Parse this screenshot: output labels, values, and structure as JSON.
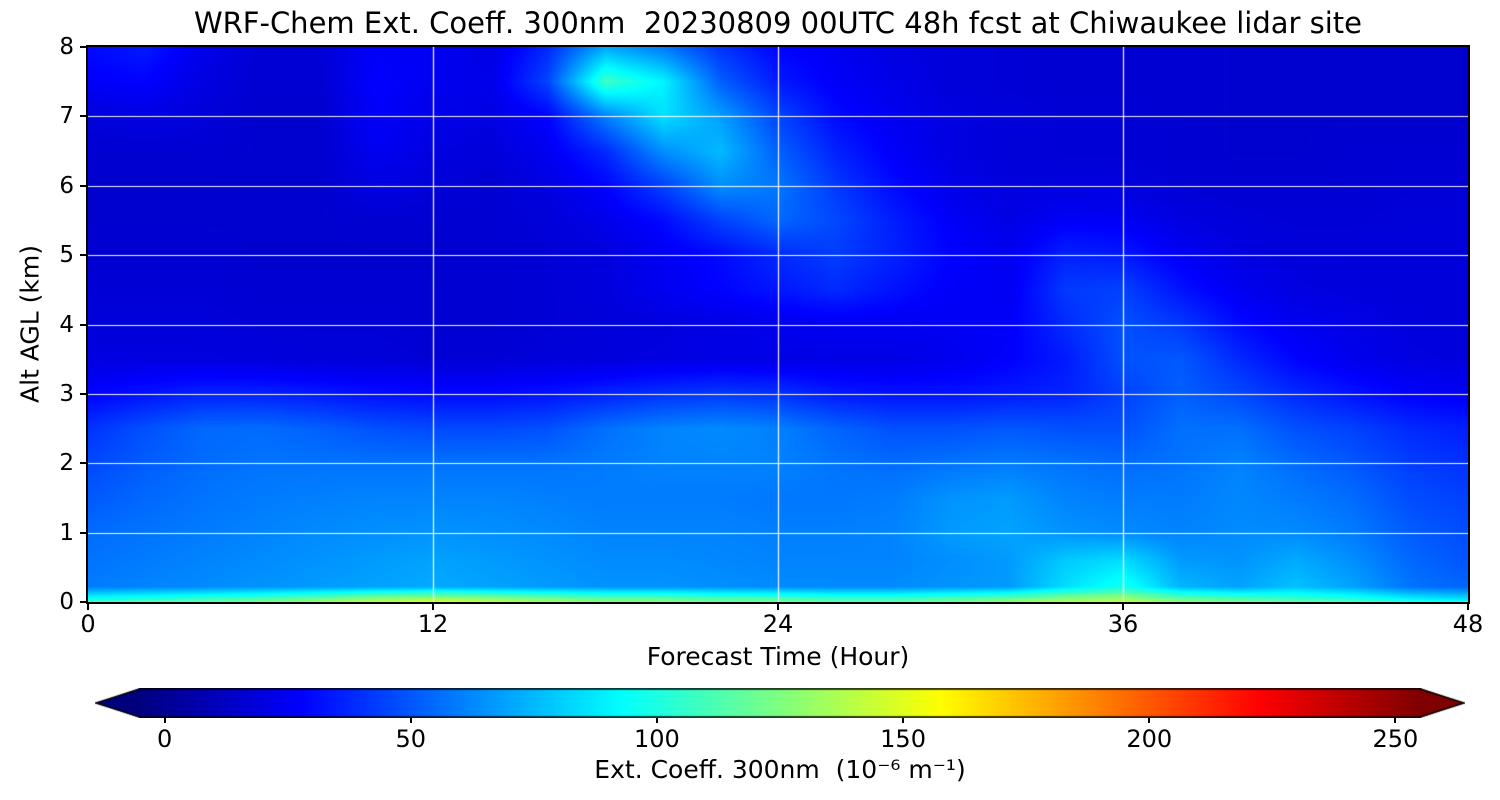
{
  "figure": {
    "title": "WRF-Chem Ext. Coeff. 300nm  20230809 00UTC 48h fcst at Chiwaukee lidar site",
    "background": "#ffffff"
  },
  "chart_data": {
    "type": "heatmap",
    "title": "WRF-Chem Ext. Coeff. 300nm  20230809 00UTC 48h fcst at Chiwaukee lidar site",
    "xlabel": "Forecast Time (Hour)",
    "ylabel": "Alt AGL (km)",
    "xlim": [
      0,
      48
    ],
    "ylim": [
      0,
      8
    ],
    "x_ticks": [
      0,
      12,
      24,
      36,
      48
    ],
    "y_ticks": [
      0,
      1,
      2,
      3,
      4,
      5,
      6,
      7,
      8
    ],
    "grid": true,
    "grid_color": "#ffffff",
    "colormap": "jet",
    "values_units": "10⁻⁶ m⁻¹",
    "x": [
      0,
      2,
      4,
      6,
      8,
      10,
      12,
      14,
      16,
      18,
      20,
      22,
      24,
      26,
      28,
      30,
      32,
      34,
      36,
      38,
      40,
      42,
      44,
      46,
      48
    ],
    "y": [
      0,
      0.05,
      0.22,
      0.6,
      1,
      1.5,
      2,
      2.5,
      3,
      3.5,
      4,
      4.5,
      5,
      5.5,
      6,
      6.5,
      7,
      7.5,
      8
    ],
    "values": [
      [
        110,
        115,
        120,
        125,
        132,
        140,
        145,
        140,
        134,
        128,
        128,
        123,
        123,
        118,
        118,
        123,
        129,
        137,
        141,
        128,
        123,
        118,
        112,
        100,
        95
      ],
      [
        95,
        100,
        105,
        110,
        118,
        128,
        133,
        128,
        122,
        116,
        116,
        111,
        111,
        106,
        106,
        111,
        117,
        126,
        131,
        116,
        111,
        106,
        100,
        89,
        84
      ],
      [
        59,
        61,
        63,
        65,
        67,
        69,
        71,
        69,
        67,
        65,
        65,
        64,
        63,
        63,
        63,
        65,
        67,
        84,
        98,
        74,
        69,
        77,
        69,
        57,
        53
      ],
      [
        57,
        59,
        61,
        63,
        65,
        67,
        69,
        67,
        65,
        63,
        63,
        62,
        61,
        61,
        61,
        64,
        67,
        79,
        84,
        67,
        65,
        71,
        64,
        54,
        49
      ],
      [
        55,
        57,
        59,
        61,
        63,
        64,
        65,
        64,
        63,
        61,
        61,
        61,
        60,
        60,
        61,
        67,
        69,
        65,
        63,
        61,
        63,
        63,
        59,
        51,
        47
      ],
      [
        50,
        54,
        57,
        59,
        60,
        61,
        61,
        61,
        60,
        59,
        59,
        59,
        58,
        58,
        59,
        65,
        67,
        61,
        59,
        59,
        62,
        59,
        55,
        47,
        44
      ],
      [
        46,
        51,
        55,
        57,
        57,
        57,
        57,
        57,
        57,
        59,
        61,
        61,
        61,
        57,
        55,
        57,
        59,
        57,
        55,
        57,
        61,
        55,
        50,
        43,
        40
      ],
      [
        40,
        48,
        54,
        55,
        52,
        48,
        46,
        46,
        48,
        56,
        61,
        63,
        60,
        53,
        48,
        48,
        50,
        48,
        48,
        56,
        56,
        48,
        44,
        38,
        35
      ],
      [
        28,
        32,
        36,
        36,
        34,
        31,
        30,
        30,
        32,
        36,
        40,
        42,
        40,
        34,
        32,
        32,
        34,
        36,
        44,
        52,
        46,
        38,
        32,
        27,
        25
      ],
      [
        20,
        20,
        20,
        19,
        18,
        18,
        17,
        17,
        18,
        19,
        20,
        21,
        21,
        21,
        21,
        23,
        27,
        34,
        48,
        50,
        38,
        28,
        23,
        20,
        19
      ],
      [
        18,
        18,
        18,
        17,
        17,
        17,
        16,
        16,
        17,
        18,
        19,
        21,
        23,
        24,
        24,
        25,
        26,
        38,
        48,
        42,
        30,
        24,
        21,
        19,
        18
      ],
      [
        17,
        17,
        17,
        16,
        16,
        16,
        16,
        16,
        17,
        19,
        24,
        28,
        33,
        38,
        32,
        26,
        24,
        42,
        44,
        32,
        24,
        20,
        19,
        18,
        18
      ],
      [
        16,
        16,
        16,
        15,
        15,
        15,
        15,
        16,
        17,
        19,
        24,
        30,
        38,
        43,
        36,
        28,
        24,
        36,
        34,
        25,
        20,
        18,
        18,
        18,
        18
      ],
      [
        15,
        15,
        15,
        15,
        15,
        16,
        16,
        16,
        18,
        22,
        30,
        44,
        54,
        46,
        35,
        26,
        21,
        26,
        25,
        20,
        18,
        17,
        17,
        18,
        18
      ],
      [
        15,
        15,
        15,
        15,
        15,
        20,
        18,
        16,
        20,
        28,
        44,
        64,
        58,
        42,
        30,
        22,
        19,
        19,
        19,
        17,
        16,
        16,
        16,
        17,
        17
      ],
      [
        16,
        16,
        16,
        15,
        15,
        24,
        20,
        18,
        24,
        38,
        64,
        75,
        52,
        36,
        26,
        20,
        18,
        17,
        17,
        16,
        15,
        15,
        16,
        16,
        16
      ],
      [
        18,
        20,
        18,
        15,
        15,
        26,
        22,
        20,
        28,
        60,
        85,
        68,
        45,
        30,
        24,
        20,
        18,
        17,
        17,
        16,
        15,
        15,
        15,
        15,
        15
      ],
      [
        26,
        28,
        20,
        16,
        16,
        28,
        24,
        22,
        45,
        108,
        90,
        52,
        34,
        26,
        22,
        18,
        17,
        16,
        16,
        16,
        15,
        15,
        15,
        15,
        15
      ],
      [
        30,
        34,
        22,
        17,
        17,
        26,
        24,
        20,
        38,
        70,
        58,
        40,
        28,
        24,
        20,
        18,
        17,
        16,
        16,
        16,
        15,
        15,
        15,
        15,
        15
      ]
    ]
  },
  "colorbar": {
    "label": "Ext. Coeff. 300nm  (10⁻⁶ m⁻¹)",
    "ticks": [
      0,
      50,
      100,
      150,
      200,
      250
    ],
    "vmin": -5,
    "vmax": 255,
    "colormap": "jet",
    "extend": "both"
  }
}
